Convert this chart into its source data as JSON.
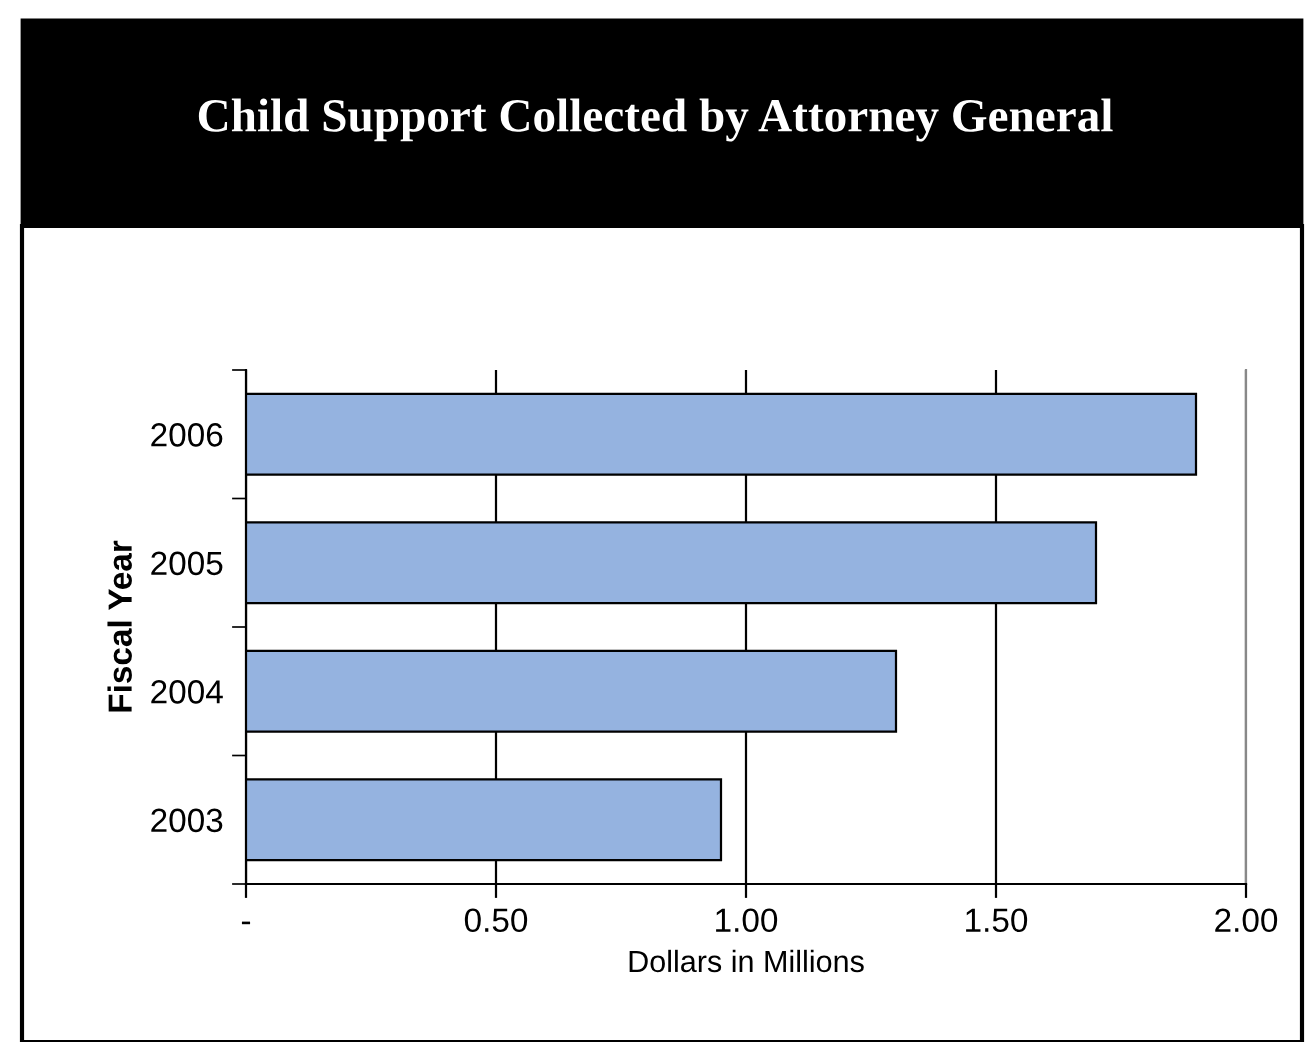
{
  "chart_data": {
    "type": "bar",
    "orientation": "horizontal",
    "title": "Child Support Collected by Attorney General",
    "xlabel": "Dollars in Millions",
    "ylabel": "Fiscal Year",
    "categories": [
      "2006",
      "2005",
      "2004",
      "2003"
    ],
    "values": [
      1.9,
      1.7,
      1.3,
      0.95
    ],
    "color": "#95b3e0",
    "xlim": [
      0,
      2
    ],
    "xticks": [
      {
        "value": 0,
        "label": "-"
      },
      {
        "value": 0.5,
        "label": "0.50"
      },
      {
        "value": 1,
        "label": "1.00"
      },
      {
        "value": 1.5,
        "label": "1.50"
      },
      {
        "value": 2,
        "label": "2.00"
      }
    ],
    "grid": "x"
  }
}
